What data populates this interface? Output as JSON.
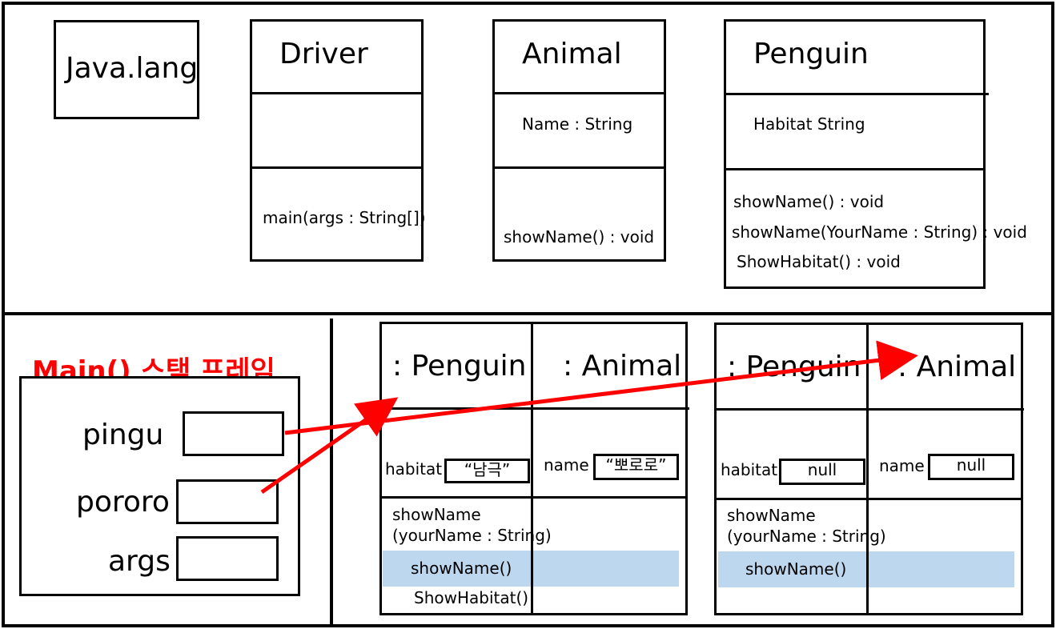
{
  "class_area": {
    "java_lang": "Java.lang",
    "driver": {
      "name": "Driver",
      "method": "main(args : String[])"
    },
    "animal": {
      "name": "Animal",
      "field": "Name : String",
      "method": "showName() :  void"
    },
    "penguin": {
      "name": "Penguin",
      "field": "Habitat String",
      "methods": [
        "showName() :  void",
        "showName(YourName : String) :  void",
        "ShowHabitat() : void"
      ]
    }
  },
  "stack": {
    "title": "Main() 스택 프레임",
    "vars": [
      "pingu",
      "pororo",
      "args"
    ]
  },
  "heap": {
    "obj1": {
      "penguin_label": ": Penguin",
      "animal_label": ": Animal",
      "habitat_label": "habitat",
      "habitat_value": "“남극”",
      "name_label": "name",
      "name_value": "“뽀로로”",
      "method_1a": "showName",
      "method_1b": "(yourName : String)",
      "method_2": "showName()",
      "method_3": "ShowHabitat()"
    },
    "obj2": {
      "penguin_label": ": Penguin",
      "animal_label": ": Animal",
      "habitat_label": "habitat",
      "habitat_value": "null",
      "name_label": "name",
      "name_value": "null",
      "method_1a": "showName",
      "method_1b": "(yourName : String)",
      "method_2": "showName()"
    }
  },
  "colors": {
    "arrow": "#ff0000",
    "highlight": "#bdd7ee",
    "title": "#ff0000"
  }
}
